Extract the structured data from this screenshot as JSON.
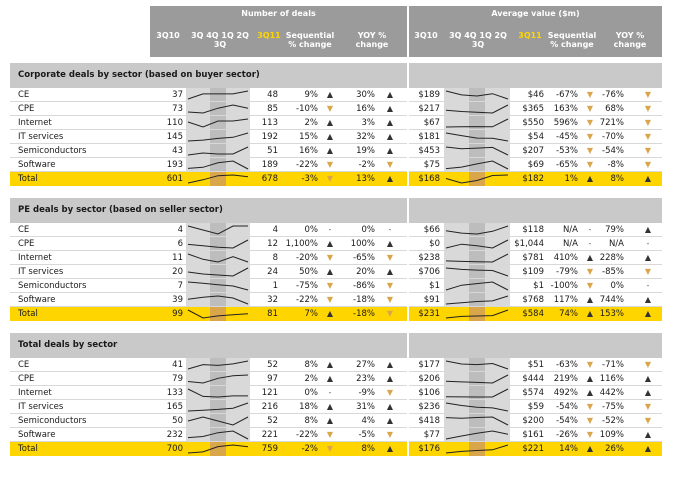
{
  "header": {
    "deals_group_title": "Number of deals",
    "value_group_title": "Average value ($m)",
    "col_prev": "3Q10",
    "col_spark": "3Q 4Q 1Q 2Q 3Q",
    "col_curr": "3Q11",
    "col_seq": "Sequential % change",
    "col_yoy": "YOY % change"
  },
  "chart_data": {
    "type": "table",
    "sections": [
      {
        "title": "Corporate deals by sector (based on buyer sector)",
        "rows": [
          {
            "name": "CE",
            "d_prev": "37",
            "d_curr": "48",
            "d_seq": "9%",
            "d_seq_dir": "up",
            "d_yoy": "30%",
            "d_yoy_dir": "up",
            "v_prev": "$189",
            "v_curr": "$46",
            "v_seq": "-67%",
            "v_seq_dir": "down",
            "v_yoy": "-76%",
            "v_yoy_dir": "down",
            "d_trend": [
              37,
              44,
              44,
              44,
              48
            ],
            "v_trend": [
              189,
              120,
              100,
              140,
              46
            ]
          },
          {
            "name": "CPE",
            "d_prev": "73",
            "d_curr": "85",
            "d_seq": "-10%",
            "d_seq_dir": "down",
            "d_yoy": "16%",
            "d_yoy_dir": "up",
            "v_prev": "$217",
            "v_curr": "$365",
            "v_seq": "163%",
            "v_seq_dir": "down",
            "v_yoy": "68%",
            "v_yoy_dir": "down",
            "d_trend": [
              73,
              70,
              85,
              95,
              85
            ],
            "v_trend": [
              217,
              180,
              160,
              139,
              365
            ]
          },
          {
            "name": "Internet",
            "d_prev": "110",
            "d_curr": "113",
            "d_seq": "2%",
            "d_seq_dir": "up",
            "d_yoy": "3%",
            "d_yoy_dir": "up",
            "v_prev": "$67",
            "v_curr": "$550",
            "v_seq": "596%",
            "v_seq_dir": "down",
            "v_yoy": "721%",
            "v_yoy_dir": "down",
            "d_trend": [
              110,
              105,
              111,
              111,
              113
            ],
            "v_trend": [
              67,
              80,
              90,
              79,
              550
            ]
          },
          {
            "name": "IT services",
            "d_prev": "145",
            "d_curr": "192",
            "d_seq": "15%",
            "d_seq_dir": "up",
            "d_yoy": "32%",
            "d_yoy_dir": "up",
            "v_prev": "$181",
            "v_curr": "$54",
            "v_seq": "-45%",
            "v_seq_dir": "down",
            "v_yoy": "-70%",
            "v_yoy_dir": "down",
            "d_trend": [
              145,
              150,
              160,
              167,
              192
            ],
            "v_trend": [
              181,
              140,
              100,
              98,
              54
            ]
          },
          {
            "name": "Semiconductors",
            "d_prev": "43",
            "d_curr": "51",
            "d_seq": "16%",
            "d_seq_dir": "up",
            "d_yoy": "19%",
            "d_yoy_dir": "up",
            "v_prev": "$453",
            "v_curr": "$207",
            "v_seq": "-53%",
            "v_seq_dir": "down",
            "v_yoy": "-54%",
            "v_yoy_dir": "down",
            "d_trend": [
              43,
              45,
              44,
              44,
              51
            ],
            "v_trend": [
              453,
              400,
              420,
              440,
              207
            ]
          },
          {
            "name": "Software",
            "d_prev": "193",
            "d_curr": "189",
            "d_seq": "-22%",
            "d_seq_dir": "down",
            "d_yoy": "-2%",
            "d_yoy_dir": "down",
            "v_prev": "$75",
            "v_curr": "$69",
            "v_seq": "-65%",
            "v_seq_dir": "down",
            "v_yoy": "-8%",
            "v_yoy_dir": "down",
            "d_trend": [
              193,
              200,
              230,
              242,
              189
            ],
            "v_trend": [
              75,
              100,
              150,
              197,
              69
            ]
          },
          {
            "name": "Total",
            "total": true,
            "d_prev": "601",
            "d_curr": "678",
            "d_seq": "-3%",
            "d_seq_dir": "down",
            "d_yoy": "13%",
            "d_yoy_dir": "up",
            "v_prev": "$168",
            "v_curr": "$182",
            "v_seq": "1%",
            "v_seq_dir": "up",
            "v_yoy": "8%",
            "v_yoy_dir": "up",
            "d_trend": [
              601,
              640,
              690,
              699,
              678
            ],
            "v_trend": [
              168,
              150,
              160,
              180,
              182
            ]
          }
        ]
      },
      {
        "title": "PE deals by sector (based on seller sector)",
        "rows": [
          {
            "name": "CE",
            "d_prev": "4",
            "d_curr": "4",
            "d_seq": "0%",
            "d_seq_dir": "dash",
            "d_yoy": "0%",
            "d_yoy_dir": "dash",
            "v_prev": "$66",
            "v_curr": "$118",
            "v_seq": "N/A",
            "v_seq_dir": "dash",
            "v_yoy": "79%",
            "v_yoy_dir": "up",
            "d_trend": [
              4,
              3,
              2,
              4,
              4
            ],
            "v_trend": [
              66,
              40,
              30,
              60,
              118
            ]
          },
          {
            "name": "CPE",
            "d_prev": "6",
            "d_curr": "12",
            "d_seq": "1,100%",
            "d_seq_dir": "up",
            "d_yoy": "100%",
            "d_yoy_dir": "up",
            "v_prev": "$0",
            "v_curr": "$1,044",
            "v_seq": "N/A",
            "v_seq_dir": "dash",
            "v_yoy": "N/A",
            "v_yoy_dir": "dash",
            "d_trend": [
              6,
              4,
              2,
              1,
              12
            ],
            "v_trend": [
              0,
              500,
              300,
              0,
              1044
            ]
          },
          {
            "name": "Internet",
            "d_prev": "11",
            "d_curr": "8",
            "d_seq": "-20%",
            "d_seq_dir": "down",
            "d_yoy": "-65%",
            "d_yoy_dir": "down",
            "v_prev": "$238",
            "v_curr": "$781",
            "v_seq": "410%",
            "v_seq_dir": "up",
            "v_yoy": "228%",
            "v_yoy_dir": "up",
            "d_trend": [
              11,
              9,
              8,
              10,
              8
            ],
            "v_trend": [
              238,
              200,
              180,
              153,
              781
            ]
          },
          {
            "name": "IT services",
            "d_prev": "20",
            "d_curr": "24",
            "d_seq": "50%",
            "d_seq_dir": "up",
            "d_yoy": "20%",
            "d_yoy_dir": "up",
            "v_prev": "$706",
            "v_curr": "$109",
            "v_seq": "-79%",
            "v_seq_dir": "down",
            "v_yoy": "-85%",
            "v_yoy_dir": "down",
            "d_trend": [
              20,
              18,
              17,
              16,
              24
            ],
            "v_trend": [
              706,
              600,
              550,
              519,
              109
            ]
          },
          {
            "name": "Semiconductors",
            "d_prev": "7",
            "d_curr": "1",
            "d_seq": "-75%",
            "d_seq_dir": "down",
            "d_yoy": "-86%",
            "d_yoy_dir": "down",
            "v_prev": "$1",
            "v_curr": "$1",
            "v_seq": "-100%",
            "v_seq_dir": "down",
            "v_yoy": "0%",
            "v_yoy_dir": "dash",
            "d_trend": [
              7,
              6,
              5,
              4,
              1
            ],
            "v_trend": [
              1,
              300,
              400,
              500,
              1
            ]
          },
          {
            "name": "Software",
            "d_prev": "39",
            "d_curr": "32",
            "d_seq": "-22%",
            "d_seq_dir": "down",
            "d_yoy": "-18%",
            "d_yoy_dir": "down",
            "v_prev": "$91",
            "v_curr": "$768",
            "v_seq": "117%",
            "v_seq_dir": "up",
            "v_yoy": "744%",
            "v_yoy_dir": "up",
            "d_trend": [
              39,
              42,
              44,
              41,
              32
            ],
            "v_trend": [
              91,
              200,
              300,
              354,
              768
            ]
          },
          {
            "name": "Total",
            "total": true,
            "d_prev": "99",
            "d_curr": "81",
            "d_seq": "7%",
            "d_seq_dir": "up",
            "d_yoy": "-18%",
            "d_yoy_dir": "down",
            "v_prev": "$231",
            "v_curr": "$584",
            "v_seq": "74%",
            "v_seq_dir": "up",
            "v_yoy": "153%",
            "v_yoy_dir": "up",
            "d_trend": [
              99,
              60,
              70,
              76,
              81
            ],
            "v_trend": [
              231,
              300,
              320,
              336,
              584
            ]
          }
        ]
      },
      {
        "title": "Total deals by sector",
        "rows": [
          {
            "name": "CE",
            "d_prev": "41",
            "d_curr": "52",
            "d_seq": "8%",
            "d_seq_dir": "up",
            "d_yoy": "27%",
            "d_yoy_dir": "up",
            "v_prev": "$177",
            "v_curr": "$51",
            "v_seq": "-63%",
            "v_seq_dir": "down",
            "v_yoy": "-71%",
            "v_yoy_dir": "down",
            "d_trend": [
              41,
              47,
              46,
              48,
              52
            ],
            "v_trend": [
              177,
              130,
              120,
              138,
              51
            ]
          },
          {
            "name": "CPE",
            "d_prev": "79",
            "d_curr": "97",
            "d_seq": "2%",
            "d_seq_dir": "up",
            "d_yoy": "23%",
            "d_yoy_dir": "up",
            "v_prev": "$206",
            "v_curr": "$444",
            "v_seq": "219%",
            "v_seq_dir": "up",
            "v_yoy": "116%",
            "v_yoy_dir": "up",
            "d_trend": [
              79,
              75,
              88,
              95,
              97
            ],
            "v_trend": [
              206,
              180,
              160,
              139,
              444
            ]
          },
          {
            "name": "Internet",
            "d_prev": "133",
            "d_curr": "121",
            "d_seq": "0%",
            "d_seq_dir": "dash",
            "d_yoy": "-9%",
            "d_yoy_dir": "down",
            "v_prev": "$106",
            "v_curr": "$574",
            "v_seq": "492%",
            "v_seq_dir": "up",
            "v_yoy": "442%",
            "v_yoy_dir": "up",
            "d_trend": [
              133,
              120,
              119,
              121,
              121
            ],
            "v_trend": [
              106,
              100,
              98,
              97,
              574
            ]
          },
          {
            "name": "IT services",
            "d_prev": "165",
            "d_curr": "216",
            "d_seq": "18%",
            "d_seq_dir": "up",
            "d_yoy": "31%",
            "d_yoy_dir": "up",
            "v_prev": "$236",
            "v_curr": "$59",
            "v_seq": "-54%",
            "v_seq_dir": "down",
            "v_yoy": "-75%",
            "v_yoy_dir": "down",
            "d_trend": [
              165,
              170,
              175,
              183,
              216
            ],
            "v_trend": [
              236,
              180,
              140,
              128,
              59
            ]
          },
          {
            "name": "Semiconductors",
            "d_prev": "50",
            "d_curr": "52",
            "d_seq": "8%",
            "d_seq_dir": "up",
            "d_yoy": "4%",
            "d_yoy_dir": "up",
            "v_prev": "$418",
            "v_curr": "$200",
            "v_seq": "-54%",
            "v_seq_dir": "down",
            "v_yoy": "-52%",
            "v_yoy_dir": "down",
            "d_trend": [
              50,
              52,
              50,
              48,
              52
            ],
            "v_trend": [
              418,
              400,
              420,
              435,
              200
            ]
          },
          {
            "name": "Software",
            "d_prev": "232",
            "d_curr": "221",
            "d_seq": "-22%",
            "d_seq_dir": "down",
            "d_yoy": "-5%",
            "d_yoy_dir": "down",
            "v_prev": "$77",
            "v_curr": "$161",
            "v_seq": "-26%",
            "v_seq_dir": "down",
            "v_yoy": "109%",
            "v_yoy_dir": "up",
            "d_trend": [
              232,
              240,
              270,
              283,
              221
            ],
            "v_trend": [
              77,
              130,
              180,
              218,
              161
            ]
          },
          {
            "name": "Total",
            "total": true,
            "d_prev": "700",
            "d_curr": "759",
            "d_seq": "-2%",
            "d_seq_dir": "down",
            "d_yoy": "8%",
            "d_yoy_dir": "up",
            "v_prev": "$176",
            "v_curr": "$221",
            "v_seq": "14%",
            "v_seq_dir": "up",
            "v_yoy": "26%",
            "v_yoy_dir": "up",
            "d_trend": [
              700,
              710,
              760,
              775,
              759
            ],
            "v_trend": [
              176,
              185,
              190,
              194,
              221
            ]
          }
        ]
      }
    ]
  },
  "colors": {
    "header_bg": "#9b9b9b",
    "section_bg": "#c9c9c9",
    "total_bg": "#ffd500",
    "highlight_col": "#ffd500",
    "spark_shade": "#d9d9d9",
    "spark_q_shade": "#d9a74a",
    "arrow_up": "#333333",
    "arrow_down": "#d9a74a"
  }
}
